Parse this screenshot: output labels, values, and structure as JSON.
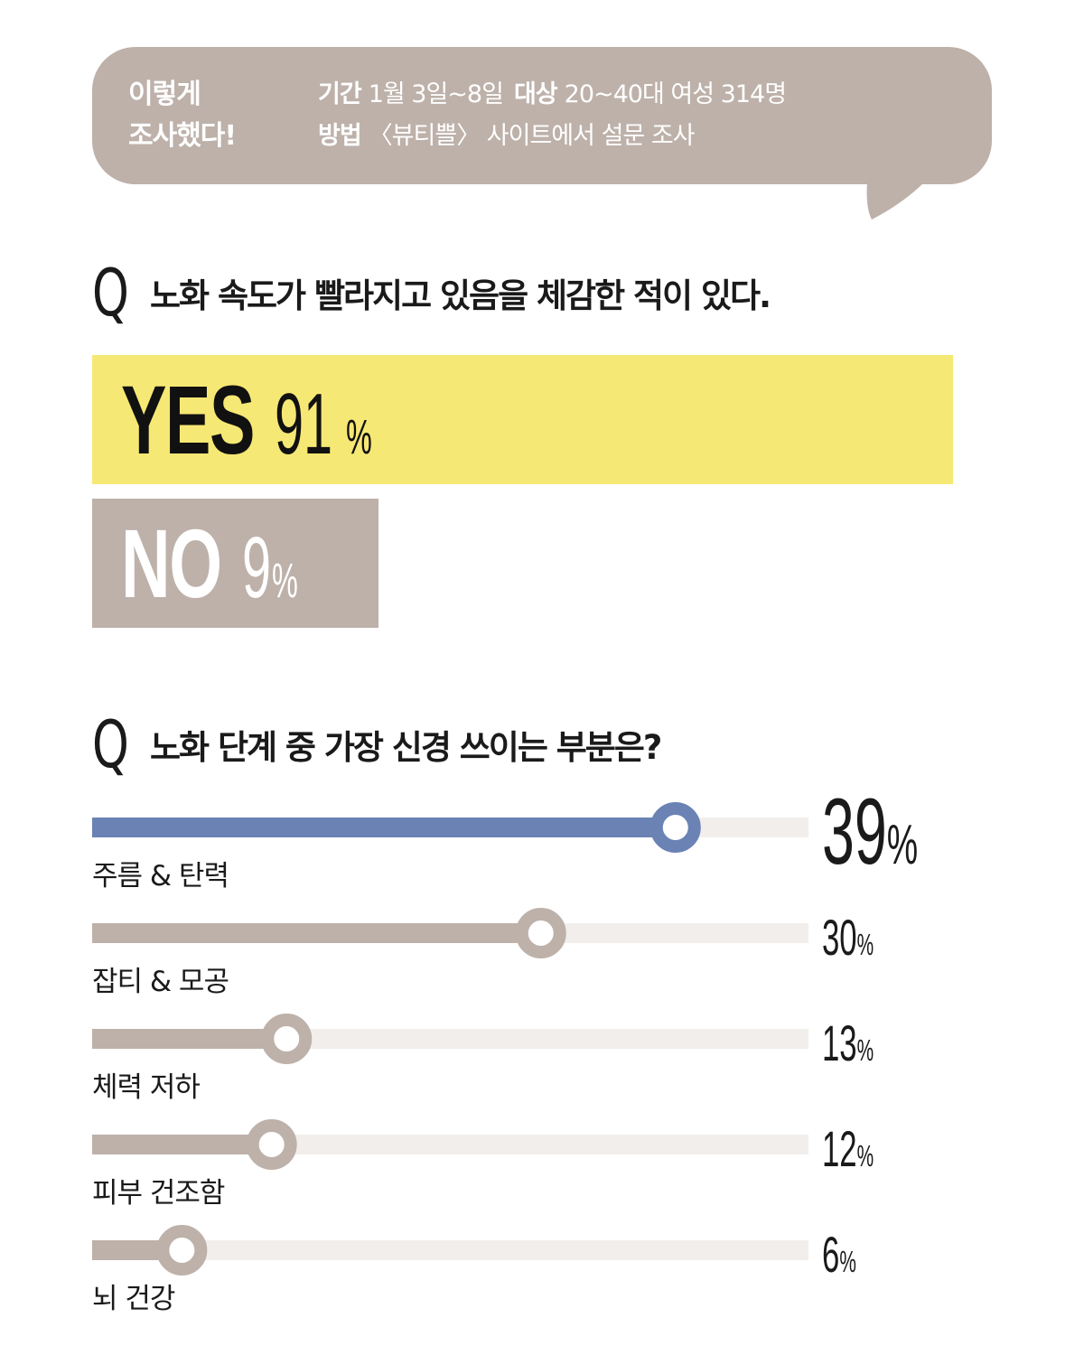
{
  "survey": {
    "title": "이렇게\n조사했다!",
    "period_label": "기간",
    "period_value": "1월 3일~8일",
    "target_label": "대상",
    "target_value": "20~40대 여성 314명",
    "method_label": "방법",
    "method_value": "〈뷰티쁠〉 사이트에서 설문 조사"
  },
  "q1": {
    "mark": "Q",
    "text": "노화 속도가 빨라지고 있음을 체감한 적이 있다.",
    "yes_label": "YES",
    "yes_value": "91",
    "no_label": "NO",
    "no_value": "9",
    "unit": "%"
  },
  "q2": {
    "mark": "Q",
    "text": "노화 단계 중 가장 신경 쓰이는 부분은?"
  },
  "colors": {
    "bubble": "#bdb1aa",
    "yes": "#f6e874",
    "highlight": "#6a82b4",
    "bar": "#bdb1aa",
    "track": "#f2eeec"
  },
  "chart_data": [
    {
      "type": "bar",
      "categories": [
        "YES",
        "NO"
      ],
      "values": [
        91,
        9
      ]
    },
    {
      "type": "bar",
      "categories": [
        "주름 & 탄력",
        "잡티 & 모공",
        "체력 저하",
        "피부 건조함",
        "뇌 건강"
      ],
      "values": [
        39,
        30,
        13,
        12,
        6
      ],
      "value_labels": [
        "39",
        "30",
        "13",
        "12",
        "6"
      ],
      "unit": "%"
    }
  ]
}
